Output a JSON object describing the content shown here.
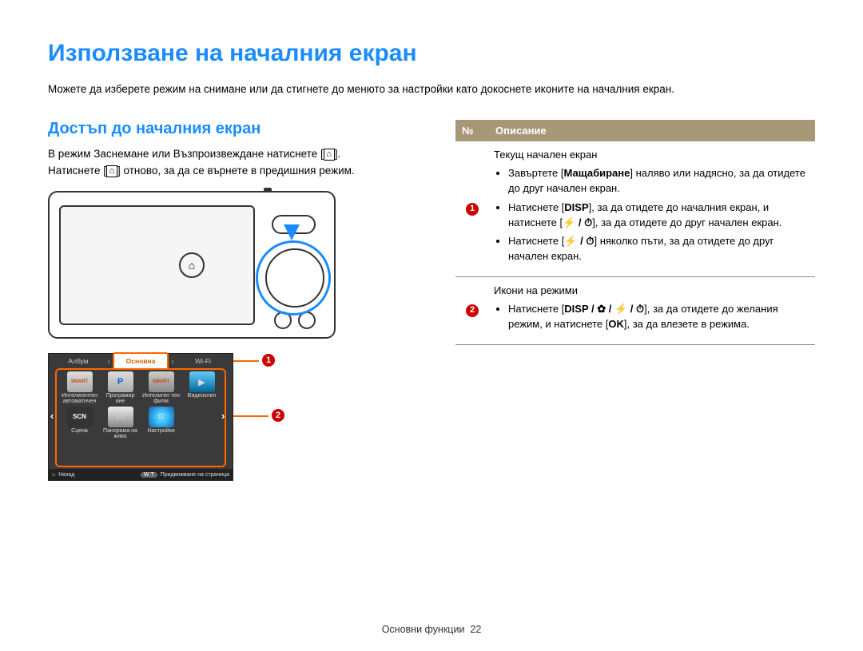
{
  "page": {
    "title": "Използване на началния екран",
    "intro": "Можете да изберете режим на снимане или да стигнете до менюто за настройки като докоснете иконите на началния екран.",
    "footer_label": "Основни функции",
    "footer_page": "22"
  },
  "left": {
    "section_title": "Достъп до началния екран",
    "body_line1_a": "В режим Заснемане или Възпроизвеждане натиснете [",
    "body_home_icon": "⌂",
    "body_line1_b": "].",
    "body_line2_a": "Натиснете [",
    "body_line2_b": "] отново, за да се върнете в предишния режим."
  },
  "mini": {
    "tab_left": "Албум",
    "tab_left_arrow": "‹",
    "tab_center": "Основна",
    "tab_right_arrow": "›",
    "tab_right": "Wi-Fi",
    "cells": [
      {
        "icon": "SMART",
        "label": "Интелигентен автоматичен"
      },
      {
        "icon": "P",
        "label": "Програмир ане"
      },
      {
        "icon": "SMART",
        "label": "Интелиген тен филм"
      },
      {
        "icon": "▶",
        "label": "Видеоклип"
      },
      {
        "icon": "SCN",
        "label": "Сцена"
      },
      {
        "icon": "▭",
        "label": "Панорама на живо"
      },
      {
        "icon": "⚙",
        "label": "Настройки"
      }
    ],
    "footer_back_icon": "⌂",
    "footer_back": "Назад",
    "footer_badge": "W  T",
    "footer_scroll": "Придвижване на страница",
    "callout1": "1",
    "callout2": "2",
    "nav_left": "‹",
    "nav_right": "›"
  },
  "table": {
    "head_num": "№",
    "head_desc": "Описание",
    "rows": [
      {
        "num": "1",
        "title": "Текущ начален екран",
        "items": [
          {
            "pre": "Завъртете [",
            "key": "Мащабиране",
            "post": "] наляво или надясно, за да отидете до друг начален екран."
          },
          {
            "pre": "Натиснете [",
            "key": "DISP",
            "mid": "], за да отидете до началния екран, и натиснете [",
            "icons": "⚡ / ⏱",
            "post": "], за да отидете до друг начален екран."
          },
          {
            "pre": "Натиснете [",
            "icons": "⚡ / ⏱",
            "post": "] няколко пъти, за да отидете до друг начален екран."
          }
        ]
      },
      {
        "num": "2",
        "title": "Икони на режими",
        "items": [
          {
            "pre": "Натиснете [",
            "key": "DISP / ✿ / ⚡ / ⏱",
            "mid": "], за да отидете до желания режим, и натиснете [",
            "key2": "OK",
            "post": "], за да влезете в режима."
          }
        ]
      }
    ]
  }
}
